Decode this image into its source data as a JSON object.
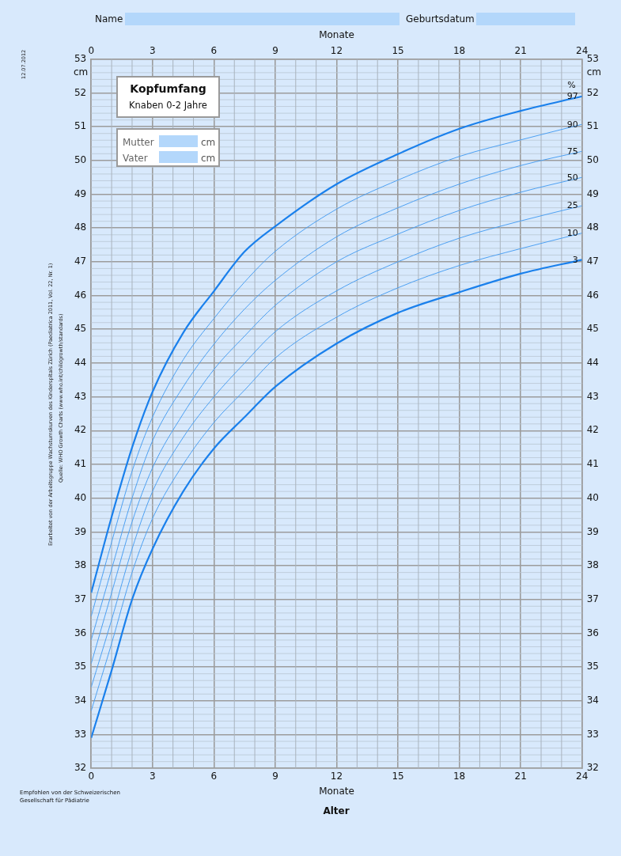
{
  "chart_data": {
    "type": "line",
    "title": "Kopfumfang",
    "subtitle": "Knaben 0-2 Jahre",
    "xlabel": "Monate",
    "x2label": "Monate",
    "ylabel": "cm",
    "y2label": "cm",
    "legend_title": "%",
    "x": [
      0,
      1,
      2,
      3,
      4.5,
      6,
      7.5,
      9,
      12,
      15,
      18,
      21,
      24
    ],
    "series": [
      {
        "name": "97",
        "color": "#1a80ec",
        "values": [
          37.2,
          39.45,
          41.5,
          43.15,
          44.9,
          46.13,
          47.3,
          48.05,
          49.3,
          50.19,
          50.94,
          51.47,
          51.9
        ]
      },
      {
        "name": "90",
        "color": "#4da0f2",
        "values": [
          36.5,
          38.7,
          40.8,
          42.4,
          44.1,
          45.32,
          46.4,
          47.31,
          48.56,
          49.42,
          50.12,
          50.61,
          51.07
        ]
      },
      {
        "name": "75",
        "color": "#4da0f2",
        "values": [
          35.8,
          37.9,
          40.0,
          41.7,
          43.3,
          44.56,
          45.6,
          46.45,
          47.74,
          48.6,
          49.3,
          49.85,
          50.27
        ]
      },
      {
        "name": "50",
        "color": "#4da0f2",
        "values": [
          35.1,
          37.2,
          39.3,
          40.9,
          42.5,
          43.81,
          44.8,
          45.71,
          47.0,
          47.82,
          48.52,
          49.06,
          49.5
        ]
      },
      {
        "name": "25",
        "color": "#4da0f2",
        "values": [
          34.4,
          36.4,
          38.5,
          40.2,
          41.8,
          43.0,
          44.0,
          44.93,
          46.14,
          47.0,
          47.7,
          48.21,
          48.66
        ]
      },
      {
        "name": "10",
        "color": "#4da0f2",
        "values": [
          33.7,
          35.7,
          37.8,
          39.4,
          41.0,
          42.24,
          43.2,
          44.15,
          45.36,
          46.23,
          46.89,
          47.39,
          47.85
        ]
      },
      {
        "name": "3",
        "color": "#1a80ec",
        "values": [
          32.9,
          34.9,
          37.0,
          38.5,
          40.2,
          41.47,
          42.4,
          43.3,
          44.58,
          45.49,
          46.1,
          46.65,
          47.06
        ]
      }
    ],
    "xlim": [
      0,
      24
    ],
    "xticks": [
      0,
      3,
      6,
      9,
      12,
      15,
      18,
      21,
      24
    ],
    "x2lim": [
      0,
      24
    ],
    "x2ticks": [
      0,
      3,
      6,
      9,
      12,
      15,
      18,
      21,
      24
    ],
    "ylim": [
      32,
      53
    ],
    "yticks": [
      32,
      33,
      34,
      35,
      36,
      37,
      38,
      39,
      40,
      41,
      42,
      43,
      44,
      45,
      46,
      47,
      48,
      49,
      50,
      51,
      52,
      53
    ],
    "y2lim": [
      32,
      53
    ],
    "y2ticks": [
      32,
      33,
      34,
      35,
      36,
      37,
      38,
      39,
      40,
      41,
      42,
      43,
      44,
      45,
      46,
      47,
      48,
      49,
      50,
      51,
      52,
      53
    ],
    "grid": true,
    "legend": false,
    "marker": "none",
    "line_style": "solid",
    "annotations": [
      "Name",
      "Geburtsdatum",
      "Mutter",
      "cm",
      "Vater",
      "cm",
      "Alter",
      "12.07.2012",
      "Erarbeitet von der Arbeitsgruppe Wachstumskurven des Kinderspitals Zürich (Paediatrica 2011, Vol. 22, Nr. 1)",
      "Quelle: WHO Growth Charts (www.who.int/childgrowth/standards)",
      "Empfohlen von der Schweizerischen Gesellschaft für Pädiatrie"
    ]
  }
}
